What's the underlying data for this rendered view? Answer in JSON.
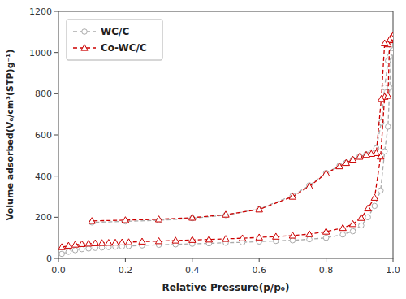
{
  "chart_data": {
    "type": "line",
    "xlabel": "Relative Pressure(p/p₀)",
    "ylabel": "Volume adsorbed(Vₐ/cm³(STP)g⁻¹)",
    "x": [
      0.01,
      0.03,
      0.05,
      0.07,
      0.09,
      0.11,
      0.13,
      0.15,
      0.17,
      0.19,
      0.21,
      0.25,
      0.3,
      0.35,
      0.4,
      0.45,
      0.5,
      0.55,
      0.6,
      0.65,
      0.7,
      0.75,
      0.8,
      0.85,
      0.88,
      0.905,
      0.925,
      0.945,
      0.963,
      0.975,
      0.985,
      0.99,
      0.995,
      0.999,
      0.999,
      0.995,
      0.99,
      0.985,
      0.975,
      0.965,
      0.95,
      0.935,
      0.92,
      0.9,
      0.88,
      0.86,
      0.84,
      0.8,
      0.75,
      0.7,
      0.6,
      0.5,
      0.4,
      0.3,
      0.2,
      0.1
    ],
    "series": [
      {
        "name": "WC/C",
        "color": "#aaaaaa",
        "marker": "circle",
        "line_style": "dashed",
        "values": [
          22,
          32,
          40,
          45,
          48,
          51,
          53,
          55,
          57,
          58,
          60,
          63,
          66,
          68,
          71,
          73,
          76,
          78,
          82,
          85,
          88,
          93,
          100,
          116,
          132,
          160,
          200,
          255,
          330,
          520,
          640,
          830,
          1000,
          1010,
          1010,
          998,
          980,
          960,
          830,
          660,
          535,
          515,
          505,
          495,
          480,
          465,
          450,
          415,
          355,
          305,
          240,
          210,
          195,
          185,
          180,
          175
        ]
      },
      {
        "name": "Co-WC/C",
        "color": "#cc0000",
        "marker": "triangle",
        "line_style": "dashed",
        "values": [
          55,
          62,
          67,
          70,
          72,
          74,
          75,
          76,
          77,
          78,
          79,
          82,
          84,
          87,
          90,
          92,
          95,
          98,
          102,
          106,
          111,
          118,
          130,
          148,
          167,
          197,
          243,
          295,
          495,
          785,
          790,
          1060,
          1073,
          1080,
          1080,
          1073,
          1062,
          1040,
          1045,
          775,
          512,
          508,
          503,
          494,
          480,
          464,
          448,
          413,
          350,
          300,
          238,
          213,
          198,
          190,
          186,
          182
        ]
      }
    ],
    "xlim": [
      0.0,
      1.0
    ],
    "ylim": [
      0,
      1200
    ],
    "xticks": [
      {
        "value": 0,
        "label": "0.0"
      },
      0.2,
      0.4,
      0.6,
      0.8,
      {
        "value": 1,
        "label": "1.0"
      }
    ],
    "yticks": [
      0,
      200,
      400,
      600,
      800,
      1000,
      1200
    ],
    "legend": "upper left",
    "grid": false
  }
}
